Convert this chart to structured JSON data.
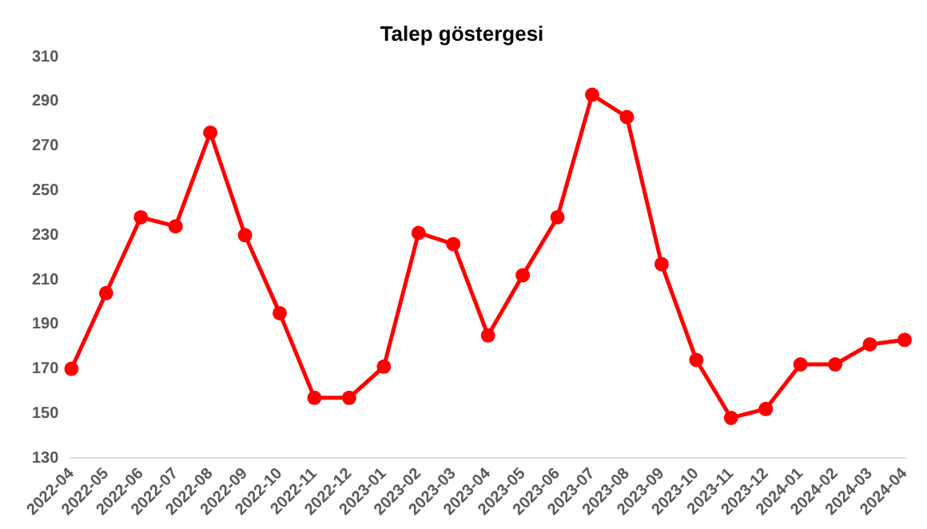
{
  "chart_data": {
    "type": "line",
    "title": "Talep göstergesi",
    "categories": [
      "2022-04",
      "2022-05",
      "2022-06",
      "2022-07",
      "2022-08",
      "2022-09",
      "2022-10",
      "2022-11",
      "2022-12",
      "2023-01",
      "2023-02",
      "2023-03",
      "2023-04",
      "2023-05",
      "2023-06",
      "2023-07",
      "2023-08",
      "2023-09",
      "2023-10",
      "2023-11",
      "2023-12",
      "2024-01",
      "2024-02",
      "2024-03",
      "2024-04"
    ],
    "series": [
      {
        "color": "#ff0000",
        "values": [
          170,
          204,
          238,
          234,
          276,
          230,
          195,
          157,
          157,
          171,
          231,
          226,
          185,
          212,
          238,
          293,
          283,
          217,
          174,
          148,
          152,
          172,
          172,
          181,
          183
        ]
      }
    ],
    "ylim": [
      130,
      310
    ],
    "yticks": [
      130,
      150,
      170,
      190,
      210,
      230,
      250,
      270,
      290,
      310
    ],
    "grid": false,
    "legend": false,
    "marker": "circle",
    "line_style": "solid"
  }
}
